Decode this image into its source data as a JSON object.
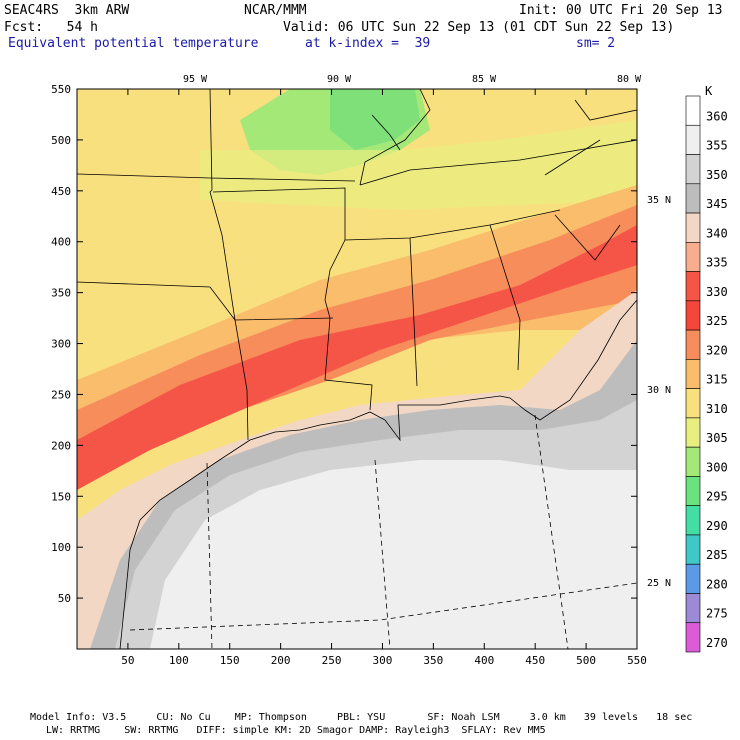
{
  "header": {
    "model": "SEAC4RS  3km ARW",
    "org": "NCAR/MMM",
    "init": "Init: 00 UTC Fri 20 Sep 13",
    "fcst": "Fcst:   54 h",
    "valid": "Valid: 06 UTC Sun 22 Sep 13 (01 CDT Sun 22 Sep 13)",
    "field": "Equivalent potential temperature",
    "k_index": "at k-index =  39",
    "smooth": "sm= 2"
  },
  "colors": {
    "text_blue": "#1a1aa6"
  },
  "chart_data": {
    "type": "heatmap",
    "title": "Equivalent potential temperature",
    "units": "K",
    "x_axis": {
      "range": [
        0,
        550
      ],
      "ticks": [
        50,
        100,
        150,
        200,
        250,
        300,
        350,
        400,
        450,
        500,
        550
      ]
    },
    "y_axis": {
      "range": [
        0,
        550
      ],
      "ticks": [
        50,
        100,
        150,
        200,
        250,
        300,
        350,
        400,
        450,
        500,
        550
      ]
    },
    "lon_labels": [
      "95 W",
      "90 W",
      "85 W",
      "80 W"
    ],
    "lat_labels": [
      "35 N",
      "30 N",
      "25 N"
    ],
    "colorbar": {
      "levels": [
        360,
        355,
        350,
        345,
        340,
        335,
        330,
        325,
        320,
        315,
        310,
        305,
        300,
        295,
        290,
        285,
        280,
        275,
        270
      ],
      "colors": [
        "#ffffff",
        "#efefef",
        "#d3d3d3",
        "#bdbdbd",
        "#f2d7c4",
        "#f7ad8e",
        "#f55547",
        "#f5463c",
        "#f78d5a",
        "#f9bd6c",
        "#f9e07f",
        "#e8ee80",
        "#a4e878",
        "#6be27d",
        "#43dea4",
        "#3ec8c8",
        "#5a9ae6",
        "#9c8ad6",
        "#dc5cd8"
      ]
    }
  },
  "footer": {
    "line1": "Model Info: V3.5     CU: No Cu    MP: Thompson     PBL: YSU       SF: Noah LSM     3.0 km   39 levels   18 sec",
    "line2": "LW: RRTMG    SW: RRTMG   DIFF: simple KM: 2D Smagor DAMP: Rayleigh3  SFLAY: Rev MM5"
  }
}
